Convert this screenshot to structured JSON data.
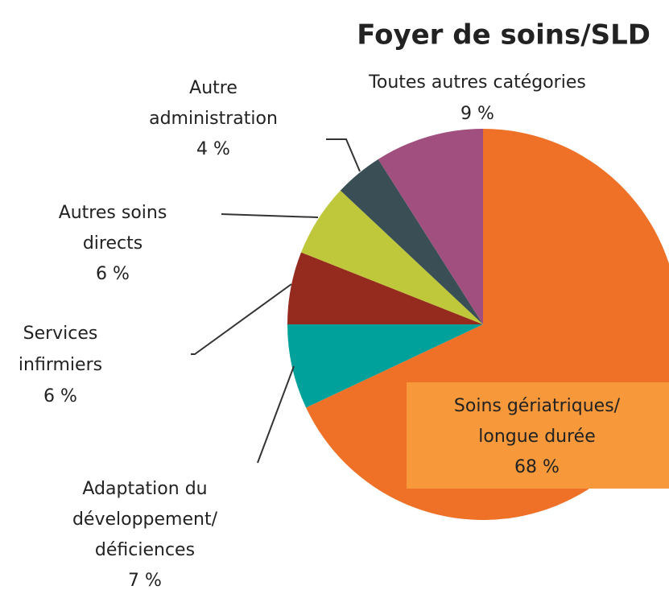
{
  "chart_data": {
    "type": "pie",
    "title": "Foyer de soins/SLD",
    "categories": [
      [
        "Soins gériatriques/",
        "longue durée"
      ],
      [
        "Adaptation du",
        "développement/",
        "déficiences"
      ],
      [
        "Services",
        "infirmiers"
      ],
      [
        "Autres soins",
        "directs"
      ],
      [
        "Autre",
        "administration"
      ],
      [
        "Toutes autres catégories"
      ]
    ],
    "values": [
      68,
      7,
      6,
      6,
      4,
      9
    ],
    "value_labels": [
      "68 %",
      "7 %",
      "6 %",
      "6 %",
      "4 %",
      "9 %"
    ],
    "colors": [
      "#EE7127",
      "#00A19A",
      "#952A1E",
      "#BFC73A",
      "#3A4F55",
      "#A04F7E"
    ]
  }
}
